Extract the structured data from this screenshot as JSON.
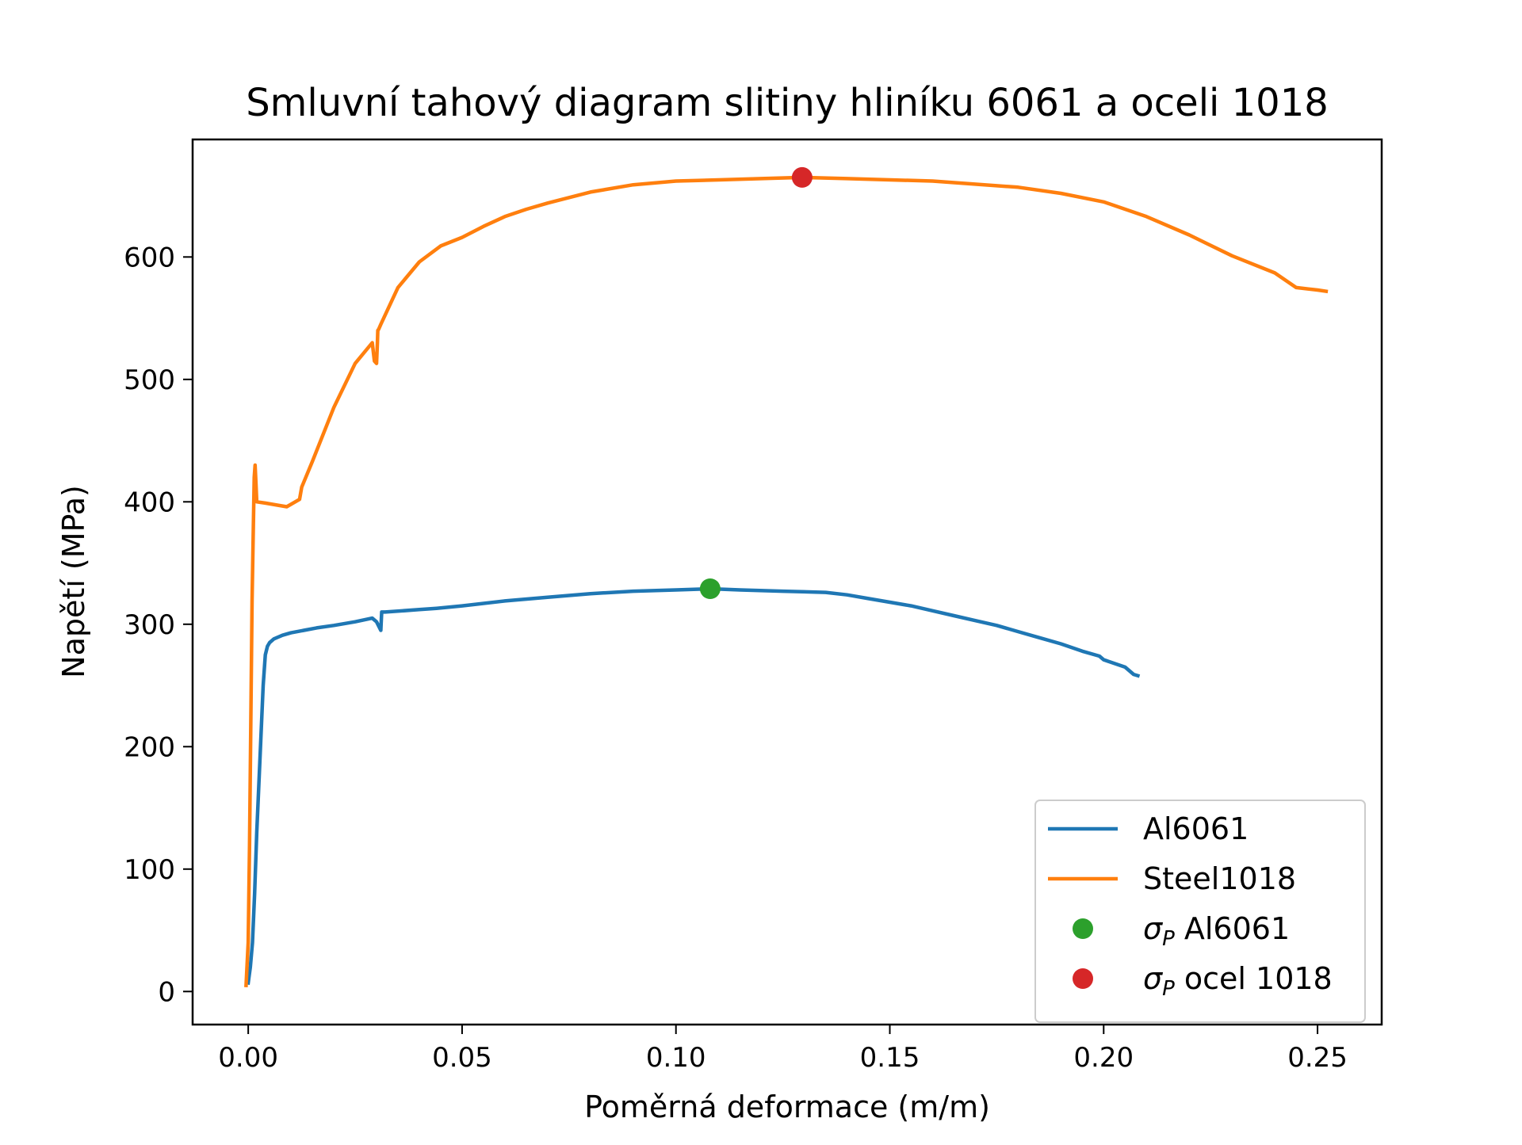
{
  "chart_data": {
    "type": "line",
    "title": "Smluvní tahový diagram  slitiny hliníku 6061 a oceli 1018",
    "xlabel": "Poměrná deformace (m/m)",
    "ylabel": "Napětí (MPa)",
    "xlim": [
      -0.013,
      0.265
    ],
    "ylim": [
      -27,
      696
    ],
    "xticks": [
      0.0,
      0.05,
      0.1,
      0.15,
      0.2,
      0.25
    ],
    "xtick_labels": [
      "0.00",
      "0.05",
      "0.10",
      "0.15",
      "0.20",
      "0.25"
    ],
    "yticks": [
      0,
      100,
      200,
      300,
      400,
      500,
      600
    ],
    "ytick_labels": [
      "0",
      "100",
      "200",
      "300",
      "400",
      "500",
      "600"
    ],
    "grid": false,
    "legend_position": "lower-right",
    "series": [
      {
        "name": "Al6061",
        "color": "#1f77b4",
        "kind": "line",
        "x": [
          0.0,
          0.0005,
          0.001,
          0.0015,
          0.002,
          0.0025,
          0.003,
          0.0035,
          0.004,
          0.0045,
          0.005,
          0.006,
          0.008,
          0.01,
          0.013,
          0.016,
          0.02,
          0.025,
          0.029,
          0.03,
          0.031,
          0.0312,
          0.032,
          0.04,
          0.044,
          0.05,
          0.06,
          0.07,
          0.08,
          0.09,
          0.1,
          0.108,
          0.115,
          0.125,
          0.135,
          0.14,
          0.145,
          0.15,
          0.155,
          0.16,
          0.165,
          0.17,
          0.175,
          0.18,
          0.185,
          0.19,
          0.195,
          0.199,
          0.2,
          0.205,
          0.207,
          0.208
        ],
        "y": [
          7,
          20,
          40,
          80,
          130,
          170,
          210,
          250,
          275,
          282,
          285,
          288,
          291,
          293,
          295,
          297,
          299,
          302,
          305,
          302,
          295,
          310,
          310,
          312,
          313,
          315,
          319,
          322,
          325,
          327,
          328,
          329,
          328,
          327,
          326,
          324,
          321,
          318,
          315,
          311,
          307,
          303,
          299,
          294,
          289,
          284,
          278,
          274,
          271,
          265,
          259,
          258
        ]
      },
      {
        "name": "Steel1018",
        "color": "#ff7f0e",
        "kind": "line",
        "x": [
          -0.0005,
          0.0,
          0.0003,
          0.0006,
          0.0009,
          0.0012,
          0.0014,
          0.0016,
          0.0018,
          0.002,
          0.004,
          0.009,
          0.012,
          0.0125,
          0.015,
          0.02,
          0.025,
          0.029,
          0.0295,
          0.03,
          0.0302,
          0.0303,
          0.0305,
          0.031,
          0.035,
          0.04,
          0.045,
          0.05,
          0.055,
          0.06,
          0.065,
          0.07,
          0.08,
          0.09,
          0.1,
          0.11,
          0.12,
          0.1295,
          0.14,
          0.16,
          0.18,
          0.19,
          0.2,
          0.21,
          0.22,
          0.23,
          0.24,
          0.245,
          0.25,
          0.252
        ],
        "y": [
          5,
          40,
          120,
          220,
          320,
          380,
          420,
          430,
          415,
          400,
          399,
          396,
          402,
          412,
          433,
          477,
          513,
          530,
          515,
          513,
          530,
          540,
          541,
          545,
          575,
          596,
          609,
          616,
          625,
          633,
          639,
          644,
          653,
          659,
          662,
          663,
          664,
          665,
          664,
          662,
          657,
          652,
          645,
          633,
          618,
          601,
          587,
          575,
          573,
          572
        ]
      },
      {
        "name": "σP Al6061",
        "color": "#2ca02c",
        "kind": "marker",
        "x": [
          0.108
        ],
        "y": [
          329
        ]
      },
      {
        "name": "σP ocel 1018",
        "color": "#d62728",
        "kind": "marker",
        "x": [
          0.1295
        ],
        "y": [
          665
        ]
      }
    ]
  }
}
